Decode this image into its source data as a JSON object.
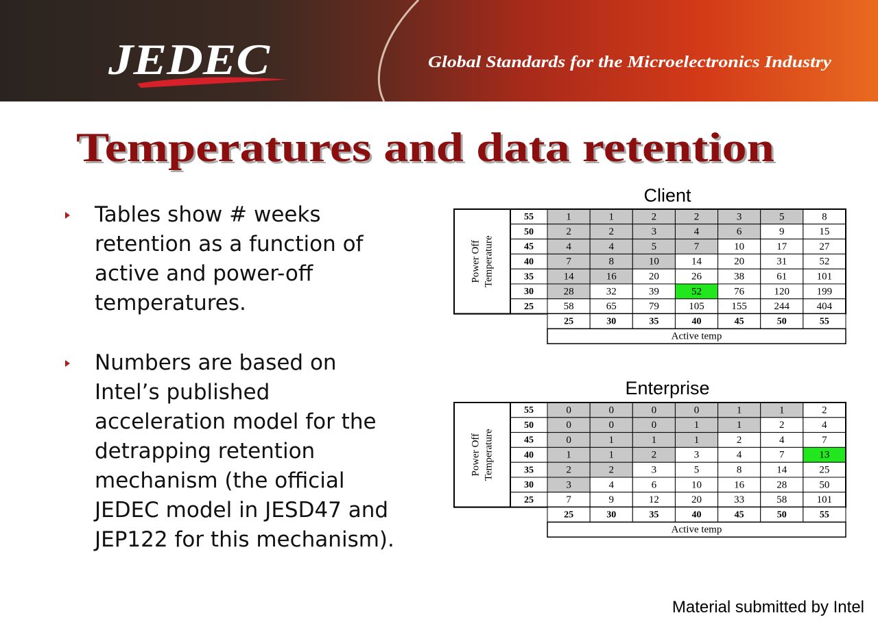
{
  "header": {
    "logo": "JEDEC",
    "tagline": "Global Standards for the Microelectronics Industry"
  },
  "title": "Temperatures and data retention",
  "bullets": [
    "Tables show # weeks retention as a function of active and power-off temperatures.",
    "Numbers are based on Intel’s published acceleration model for the detrapping retention mechanism (the official JEDEC model in JESD47 and JEP122 for this mechanism)."
  ],
  "tables": [
    {
      "title": "Client",
      "row_header": [
        "Power Off",
        "Temperature"
      ],
      "col_header": "Active temp",
      "row_labels": [
        55,
        50,
        45,
        40,
        35,
        30,
        25
      ],
      "col_labels": [
        25,
        30,
        35,
        40,
        45,
        50,
        55
      ],
      "rows": [
        [
          1,
          1,
          2,
          2,
          3,
          5,
          8
        ],
        [
          2,
          2,
          3,
          4,
          6,
          9,
          15
        ],
        [
          4,
          4,
          5,
          7,
          10,
          17,
          27
        ],
        [
          7,
          8,
          10,
          14,
          20,
          31,
          52
        ],
        [
          14,
          16,
          20,
          26,
          38,
          61,
          101
        ],
        [
          28,
          32,
          39,
          52,
          76,
          120,
          199
        ],
        [
          58,
          65,
          79,
          105,
          155,
          244,
          404
        ]
      ]
    },
    {
      "title": "Enterprise",
      "row_header": [
        "Power Off",
        "Temperature"
      ],
      "col_header": "Active temp",
      "row_labels": [
        55,
        50,
        45,
        40,
        35,
        30,
        25
      ],
      "col_labels": [
        25,
        30,
        35,
        40,
        45,
        50,
        55
      ],
      "rows": [
        [
          0,
          0,
          0,
          0,
          1,
          1,
          2
        ],
        [
          0,
          0,
          0,
          1,
          1,
          2,
          4
        ],
        [
          0,
          1,
          1,
          1,
          2,
          4,
          7
        ],
        [
          1,
          1,
          2,
          3,
          4,
          7,
          13
        ],
        [
          2,
          2,
          3,
          5,
          8,
          14,
          25
        ],
        [
          3,
          4,
          6,
          10,
          16,
          28,
          50
        ],
        [
          7,
          9,
          12,
          20,
          33,
          58,
          101
        ]
      ]
    }
  ],
  "footer": "Material submitted by Intel"
}
